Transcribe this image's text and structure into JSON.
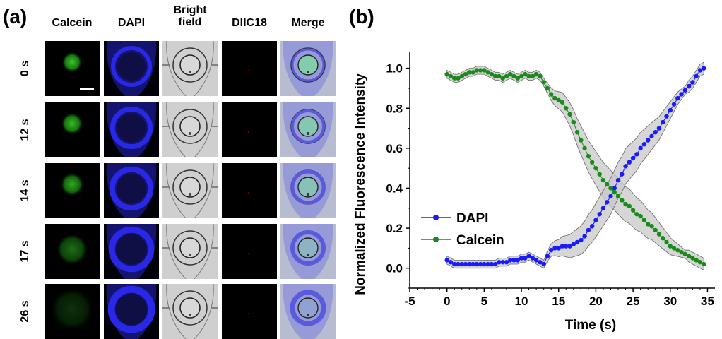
{
  "panel_a": {
    "label": "(a)",
    "columns": [
      {
        "title": "Calcein"
      },
      {
        "title": "DAPI"
      },
      {
        "title": "Bright field"
      },
      {
        "title": "DIIC18"
      },
      {
        "title": "Merge"
      }
    ],
    "rows": [
      "0 s",
      "12 s",
      "14 s",
      "17 s",
      "26 s"
    ]
  },
  "panel_b": {
    "label": "(b)"
  },
  "chart_data": {
    "type": "line",
    "title": "",
    "xlabel": "Time (s)",
    "ylabel": "Normalized Fluorescence Intensity",
    "xlim": [
      -5,
      36
    ],
    "ylim": [
      -0.1,
      1.08
    ],
    "x_ticks": [
      -5,
      0,
      5,
      10,
      15,
      20,
      25,
      30,
      35
    ],
    "y_ticks": [
      0.0,
      0.2,
      0.4,
      0.6,
      0.8,
      1.0
    ],
    "legend_position": "bottom-left",
    "series": [
      {
        "name": "DAPI",
        "color": "#1a1aff",
        "x": [
          0,
          0.5,
          1,
          1.5,
          2,
          2.5,
          3,
          3.5,
          4,
          4.5,
          5,
          5.5,
          6,
          6.5,
          7,
          7.5,
          8,
          8.5,
          9,
          9.5,
          10,
          10.5,
          11,
          11.5,
          12,
          12.5,
          13,
          13.5,
          14,
          14.5,
          15,
          15.5,
          16,
          16.5,
          17,
          17.5,
          18,
          18.5,
          19,
          19.5,
          20,
          20.5,
          21,
          21.5,
          22,
          22.5,
          23,
          23.5,
          24,
          24.5,
          25,
          25.5,
          26,
          26.5,
          27,
          27.5,
          28,
          28.5,
          29,
          29.5,
          30,
          30.5,
          31,
          31.5,
          32,
          32.5,
          33,
          33.5,
          34,
          34.5
        ],
        "y": [
          0.04,
          0.03,
          0.02,
          0.02,
          0.02,
          0.02,
          0.02,
          0.02,
          0.02,
          0.02,
          0.02,
          0.02,
          0.02,
          0.02,
          0.03,
          0.03,
          0.03,
          0.04,
          0.04,
          0.04,
          0.05,
          0.05,
          0.06,
          0.05,
          0.04,
          0.03,
          0.02,
          0.06,
          0.09,
          0.1,
          0.1,
          0.11,
          0.11,
          0.11,
          0.12,
          0.13,
          0.14,
          0.16,
          0.19,
          0.21,
          0.24,
          0.27,
          0.3,
          0.33,
          0.36,
          0.4,
          0.44,
          0.47,
          0.51,
          0.53,
          0.55,
          0.57,
          0.6,
          0.62,
          0.64,
          0.66,
          0.68,
          0.7,
          0.73,
          0.76,
          0.79,
          0.82,
          0.85,
          0.87,
          0.89,
          0.91,
          0.93,
          0.96,
          0.99,
          1.0
        ]
      },
      {
        "name": "Calcein",
        "color": "#1a8a1a",
        "x": [
          0,
          0.5,
          1,
          1.5,
          2,
          2.5,
          3,
          3.5,
          4,
          4.5,
          5,
          5.5,
          6,
          6.5,
          7,
          7.5,
          8,
          8.5,
          9,
          9.5,
          10,
          10.5,
          11,
          11.5,
          12,
          12.5,
          13,
          13.5,
          14,
          14.5,
          15,
          15.5,
          16,
          16.5,
          17,
          17.5,
          18,
          18.5,
          19,
          19.5,
          20,
          20.5,
          21,
          21.5,
          22,
          22.5,
          23,
          23.5,
          24,
          24.5,
          25,
          25.5,
          26,
          26.5,
          27,
          27.5,
          28,
          28.5,
          29,
          29.5,
          30,
          30.5,
          31,
          31.5,
          32,
          32.5,
          33,
          33.5,
          34,
          34.5
        ],
        "y": [
          0.97,
          0.96,
          0.95,
          0.95,
          0.96,
          0.97,
          0.98,
          0.98,
          0.99,
          0.99,
          0.99,
          0.98,
          0.97,
          0.96,
          0.96,
          0.95,
          0.96,
          0.97,
          0.96,
          0.95,
          0.96,
          0.97,
          0.96,
          0.96,
          0.97,
          0.96,
          0.93,
          0.9,
          0.87,
          0.85,
          0.84,
          0.83,
          0.8,
          0.77,
          0.73,
          0.68,
          0.64,
          0.6,
          0.56,
          0.53,
          0.5,
          0.47,
          0.44,
          0.42,
          0.4,
          0.38,
          0.36,
          0.34,
          0.32,
          0.31,
          0.29,
          0.27,
          0.26,
          0.24,
          0.22,
          0.21,
          0.19,
          0.17,
          0.15,
          0.13,
          0.11,
          0.1,
          0.09,
          0.08,
          0.07,
          0.06,
          0.05,
          0.04,
          0.03,
          0.02
        ]
      }
    ]
  }
}
